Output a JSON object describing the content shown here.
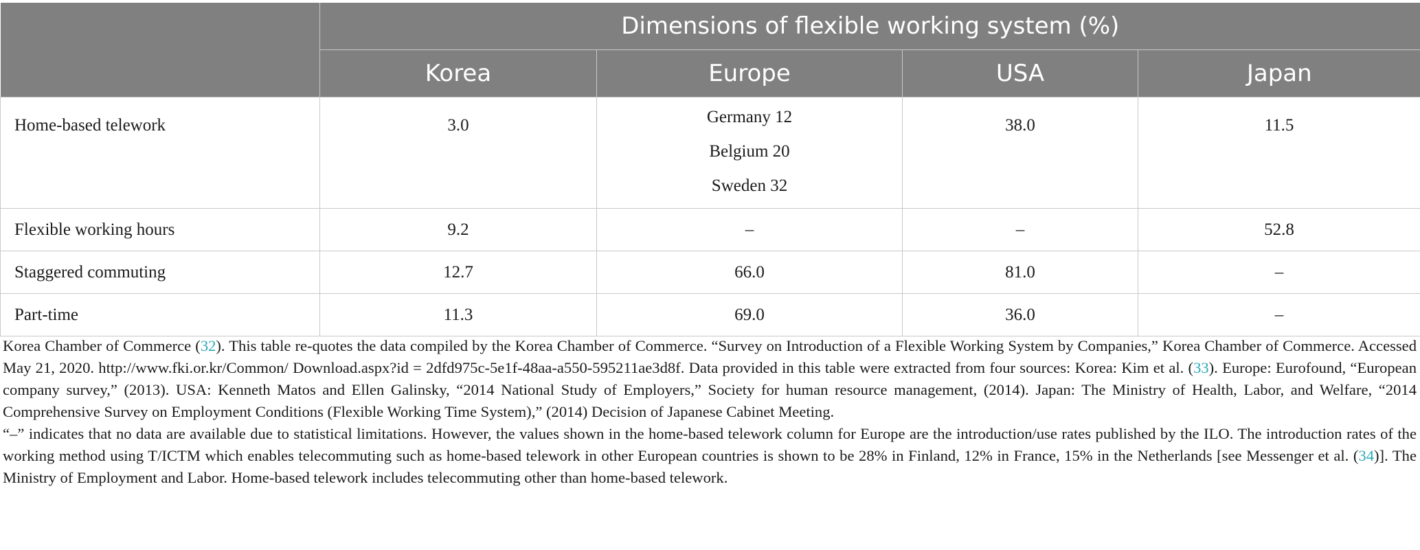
{
  "table": {
    "group_header": "Dimensions of flexible working system (%)",
    "columns": [
      "Korea",
      "Europe",
      "USA",
      "Japan"
    ],
    "rows": [
      {
        "label": "Home-based telework",
        "korea": "3.0",
        "europe": [
          "Germany 12",
          "Belgium 20",
          "Sweden 32"
        ],
        "usa": "38.0",
        "japan": "11.5"
      },
      {
        "label": "Flexible working hours",
        "korea": "9.2",
        "europe": "–",
        "usa": "–",
        "japan": "52.8"
      },
      {
        "label": "Staggered commuting",
        "korea": "12.7",
        "europe": "66.0",
        "usa": "81.0",
        "japan": "–"
      },
      {
        "label": "Part-time",
        "korea": "11.3",
        "europe": "69.0",
        "usa": "36.0",
        "japan": "–"
      }
    ]
  },
  "notes": {
    "note1": {
      "pre": "Korea Chamber of Commerce (",
      "ref1": "32",
      "mid1": "). This table re-quotes the data compiled by the Korea Chamber of Commerce. “Survey on Introduction of a Flexible Working System by Companies,” Korea Chamber of Commerce. Accessed May 21, 2020. http://www.fki.or.kr/Common/ Download.aspx?id = 2dfd975c-5e1f-48aa-a550-595211ae3d8f. Data provided in this table were extracted from four sources: Korea: Kim et al. (",
      "ref2": "33",
      "post": "). Europe: Eurofound, “European company survey,” (2013). USA: Kenneth Matos and Ellen Galinsky, “2014 National Study of Employers,” Society for human resource management, (2014). Japan: The Ministry of Health, Labor, and Welfare, “2014 Comprehensive Survey on Employment Conditions (Flexible Working Time System),” (2014) Decision of Japanese Cabinet Meeting."
    },
    "note2": {
      "pre": "“–” indicates that no data are available due to statistical limitations. However, the values shown in the home-based telework column for Europe are the introduction/use rates published by the ILO. The introduction rates of the working method using T/ICTM which enables telecommuting such as home-based telework in other European countries is shown to be 28% in Finland, 12% in France, 15% in the Netherlands [see Messenger et al. (",
      "ref": "34",
      "post": ")]. The Ministry of Employment and Labor. Home-based telework includes telecommuting other than home-based telework."
    }
  }
}
